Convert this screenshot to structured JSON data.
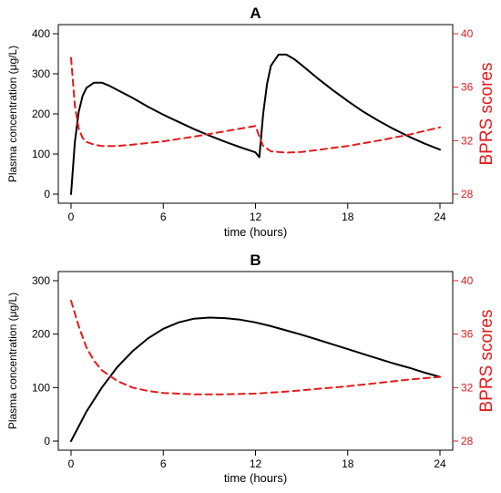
{
  "chart_data": [
    {
      "type": "line",
      "title": "A",
      "xlabel": "time (hours)",
      "ylabel": "Plasma concentration (μg/L)",
      "y2label": "BPRS scores",
      "xlim": [
        0,
        24
      ],
      "ylim": [
        0,
        400
      ],
      "y2lim": [
        28,
        40
      ],
      "xticks": [
        "0",
        "6",
        "12",
        "18",
        "24"
      ],
      "yticks": [
        "0",
        "100",
        "200",
        "300",
        "400"
      ],
      "y2ticks": [
        "28",
        "32",
        "36",
        "40"
      ],
      "series": [
        {
          "axis": "left",
          "color": "#000000",
          "style": "solid",
          "x": [
            0,
            0.25,
            0.5,
            0.75,
            1,
            1.5,
            2,
            2.5,
            3,
            4,
            5,
            6,
            7,
            8,
            9,
            10,
            11,
            12,
            12.25,
            12.5,
            12.75,
            13,
            13.5,
            14,
            14.5,
            15,
            16,
            17,
            18,
            19,
            20,
            21,
            22,
            23,
            24
          ],
          "y": [
            0,
            130,
            205,
            245,
            265,
            278,
            278,
            270,
            260,
            240,
            218,
            198,
            180,
            162,
            146,
            131,
            117,
            104,
            92,
            200,
            275,
            320,
            348,
            348,
            337,
            322,
            290,
            260,
            232,
            206,
            183,
            162,
            143,
            126,
            111
          ]
        },
        {
          "axis": "right",
          "color": "#e31a1c",
          "style": "dashed",
          "x": [
            0,
            0.25,
            0.5,
            0.75,
            1,
            1.5,
            2,
            3,
            4,
            6,
            8,
            10,
            12,
            12.25,
            12.5,
            13,
            14,
            15,
            16,
            18,
            20,
            22,
            24
          ],
          "y": [
            38.2,
            34.6,
            32.9,
            32.2,
            31.9,
            31.7,
            31.6,
            31.6,
            31.7,
            31.95,
            32.3,
            32.7,
            33.1,
            32.3,
            31.6,
            31.2,
            31.1,
            31.15,
            31.3,
            31.6,
            32,
            32.45,
            33.0
          ]
        }
      ]
    },
    {
      "type": "line",
      "title": "B",
      "xlabel": "time (hours)",
      "ylabel": "Plasma concentration (μg/L)",
      "y2label": "BPRS scores",
      "xlim": [
        0,
        24
      ],
      "ylim": [
        0,
        300
      ],
      "y2lim": [
        28,
        40
      ],
      "xticks": [
        "0",
        "6",
        "12",
        "18",
        "24"
      ],
      "yticks": [
        "0",
        "100",
        "200",
        "300"
      ],
      "y2ticks": [
        "28",
        "32",
        "36",
        "40"
      ],
      "series": [
        {
          "axis": "left",
          "color": "#000000",
          "style": "solid",
          "x": [
            0,
            1,
            2,
            3,
            4,
            5,
            6,
            7,
            8,
            9,
            10,
            11,
            12,
            13,
            14,
            15,
            16,
            17,
            18,
            19,
            20,
            21,
            22,
            23,
            24
          ],
          "y": [
            0,
            55,
            100,
            138,
            168,
            192,
            210,
            222,
            229,
            231,
            230,
            227,
            222,
            215,
            207,
            199,
            190,
            181,
            172,
            163,
            154,
            145,
            137,
            128,
            120
          ]
        },
        {
          "axis": "right",
          "color": "#e31a1c",
          "style": "dashed",
          "x": [
            0,
            0.5,
            1,
            1.5,
            2,
            3,
            4,
            5,
            6,
            8,
            10,
            12,
            14,
            16,
            18,
            20,
            22,
            24
          ],
          "y": [
            38.5,
            36.6,
            35.0,
            34.0,
            33.3,
            32.5,
            32.0,
            31.75,
            31.6,
            31.5,
            31.5,
            31.55,
            31.7,
            31.9,
            32.1,
            32.35,
            32.6,
            32.8
          ]
        }
      ]
    }
  ]
}
